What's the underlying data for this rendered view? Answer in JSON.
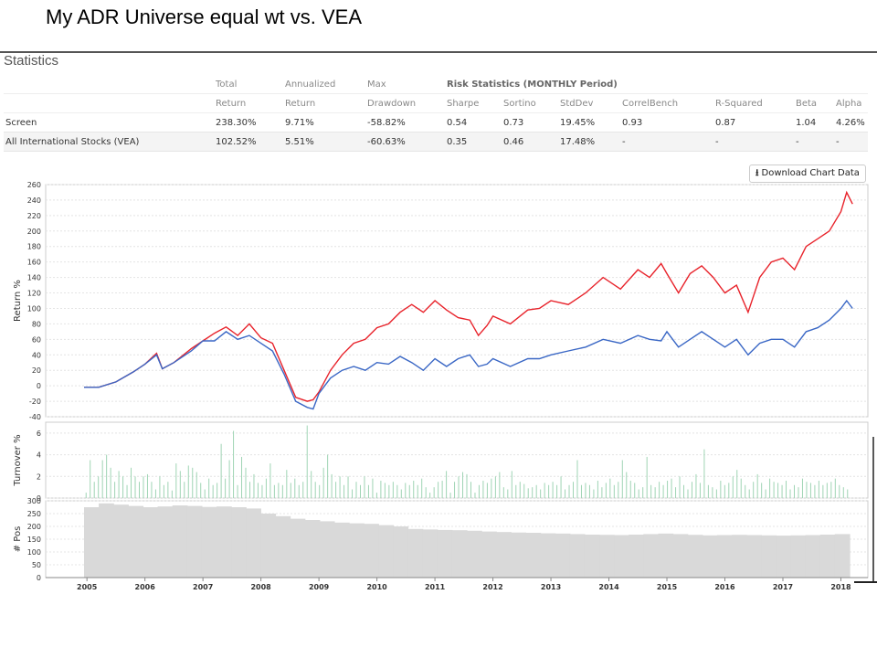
{
  "slide_title": "My ADR Universe equal wt vs. VEA",
  "panel_title": "Statistics",
  "download_label": "Download Chart Data",
  "icons": {
    "download": "download-icon"
  },
  "table": {
    "header1": [
      "",
      "Total",
      "Annualized",
      "Max",
      "Risk Statistics (MONTHLY Period)"
    ],
    "header2": [
      "",
      "Return",
      "Return",
      "Drawdown",
      "Sharpe",
      "Sortino",
      "StdDev",
      "CorrelBench",
      "R-Squared",
      "Beta",
      "Alpha"
    ],
    "rows": [
      {
        "name": "Screen",
        "total": "238.30%",
        "annualized": "9.71%",
        "max_dd": "-58.82%",
        "sharpe": "0.54",
        "sortino": "0.73",
        "stddev": "19.45%",
        "correl": "0.93",
        "rsq": "0.87",
        "beta": "1.04",
        "alpha": "4.26%"
      },
      {
        "name": "All International Stocks (VEA)",
        "total": "102.52%",
        "annualized": "5.51%",
        "max_dd": "-60.63%",
        "sharpe": "0.35",
        "sortino": "0.46",
        "stddev": "17.48%",
        "correl": "-",
        "rsq": "-",
        "beta": "-",
        "alpha": "-"
      }
    ]
  },
  "colors": {
    "screen": "#e8232b",
    "bench": "#3a67c5",
    "turnover": "#9fd4b4",
    "positions": "#d9d9d9",
    "negative": "#c0392b"
  },
  "chart_data": [
    {
      "type": "line",
      "ylabel": "Return %",
      "ylim": [
        -40,
        260
      ],
      "yticks": [
        -40,
        -20,
        0,
        20,
        40,
        60,
        80,
        100,
        120,
        140,
        160,
        180,
        200,
        220,
        240,
        260
      ],
      "x": [
        2004.95,
        2005.2,
        2005.5,
        2005.8,
        2006.0,
        2006.2,
        2006.3,
        2006.5,
        2006.8,
        2007.0,
        2007.2,
        2007.4,
        2007.6,
        2007.8,
        2008.0,
        2008.2,
        2008.4,
        2008.6,
        2008.8,
        2008.9,
        2009.0,
        2009.2,
        2009.4,
        2009.6,
        2009.8,
        2010.0,
        2010.2,
        2010.4,
        2010.6,
        2010.8,
        2011.0,
        2011.2,
        2011.4,
        2011.6,
        2011.75,
        2011.9,
        2012.0,
        2012.3,
        2012.6,
        2012.8,
        2013.0,
        2013.3,
        2013.6,
        2013.9,
        2014.2,
        2014.5,
        2014.7,
        2014.9,
        2015.0,
        2015.2,
        2015.4,
        2015.6,
        2015.8,
        2016.0,
        2016.2,
        2016.4,
        2016.6,
        2016.8,
        2017.0,
        2017.2,
        2017.4,
        2017.6,
        2017.8,
        2018.0,
        2018.1,
        2018.2
      ],
      "series": [
        {
          "name": "Screen",
          "values": [
            -2,
            -2,
            5,
            18,
            28,
            42,
            22,
            30,
            48,
            58,
            68,
            76,
            65,
            80,
            62,
            55,
            20,
            -15,
            -20,
            -18,
            -8,
            20,
            40,
            55,
            60,
            75,
            80,
            95,
            105,
            95,
            110,
            98,
            88,
            85,
            65,
            78,
            90,
            80,
            98,
            100,
            110,
            105,
            120,
            140,
            125,
            150,
            140,
            158,
            145,
            120,
            145,
            155,
            140,
            120,
            130,
            95,
            140,
            160,
            165,
            150,
            180,
            190,
            200,
            225,
            250,
            235
          ],
          "color": "#e8232b"
        },
        {
          "name": "All International Stocks (VEA)",
          "values": [
            -2,
            -2,
            5,
            18,
            28,
            40,
            22,
            30,
            45,
            58,
            58,
            70,
            60,
            65,
            55,
            45,
            15,
            -20,
            -28,
            -30,
            -10,
            10,
            20,
            25,
            20,
            30,
            28,
            38,
            30,
            20,
            35,
            25,
            35,
            40,
            25,
            28,
            35,
            25,
            35,
            35,
            40,
            45,
            50,
            60,
            55,
            65,
            60,
            58,
            70,
            50,
            60,
            70,
            60,
            50,
            60,
            40,
            55,
            60,
            60,
            50,
            70,
            75,
            85,
            100,
            110,
            100
          ],
          "color": "#3a67c5"
        }
      ]
    },
    {
      "type": "bar",
      "ylabel": "Turnover %",
      "ylim": [
        0,
        7
      ],
      "yticks": [
        0,
        2,
        4,
        6
      ],
      "values": [
        0.5,
        3.5,
        1.5,
        2,
        3.5,
        4,
        2.8,
        1.5,
        2.5,
        2,
        1.2,
        2.8,
        2,
        1.5,
        2,
        2.2,
        1.5,
        0.8,
        2,
        1.2,
        1.5,
        0.7,
        3.2,
        2.5,
        1.5,
        3,
        2.8,
        2.4,
        1.4,
        0.8,
        1.8,
        1.2,
        1.4,
        5,
        1.8,
        3.5,
        6.2,
        1.2,
        3.8,
        2.8,
        1.5,
        2.2,
        1.4,
        1.2,
        1.8,
        3.2,
        1.2,
        1.4,
        1.2,
        2.6,
        1.4,
        1.8,
        1.2,
        1.5,
        6.7,
        2.5,
        1.5,
        1.2,
        2.8,
        4,
        2.2,
        1.5,
        2,
        1.2,
        2,
        0.8,
        1.5,
        1.2,
        2,
        1.2,
        1.8,
        0.5,
        1.6,
        1.4,
        1.2,
        1.5,
        1.2,
        0.8,
        1.4,
        1.2,
        1.6,
        1.2,
        1.8,
        1,
        0.5,
        1,
        1.5,
        1.6,
        2.5,
        0.5,
        1.5,
        2,
        2.4,
        2.2,
        1.5,
        0.5,
        1.2,
        1.6,
        1.4,
        1.8,
        2,
        2.4,
        1,
        0.8,
        2.5,
        1.2,
        1.5,
        1.3,
        0.9,
        1,
        1.2,
        0.8,
        1.4,
        1.2,
        1.5,
        1.2,
        2,
        0.8,
        1.2,
        1.5,
        3.5,
        1.2,
        1.4,
        1.2,
        0.8,
        1.6,
        1,
        1.4,
        1.8,
        1.2,
        1.5,
        3.5,
        2.4,
        1.6,
        1.4,
        0.8,
        1,
        3.8,
        1.2,
        1,
        1.5,
        1.2,
        1.6,
        1.8,
        1,
        2,
        1.2,
        0.8,
        1.5,
        2.2,
        1.4,
        4.5,
        1.2,
        1,
        0.8,
        1.6,
        1.2,
        1.4,
        2,
        2.6,
        1.8,
        1.2,
        0.8,
        1.5,
        2.2,
        1.4,
        0.8,
        1.8,
        1.5,
        1.4,
        1.2,
        1.6,
        0.8,
        1.2,
        1,
        1.8,
        1.5,
        1.4,
        1.2,
        1.6,
        1.2,
        1.4,
        1.5,
        1.8,
        1.2,
        1,
        0.8
      ]
    },
    {
      "type": "bar",
      "ylabel": "# Pos",
      "ylim": [
        0,
        300
      ],
      "yticks": [
        0,
        50,
        100,
        150,
        200,
        250,
        300
      ],
      "values": [
        275,
        290,
        285,
        280,
        275,
        278,
        282,
        280,
        276,
        278,
        275,
        270,
        250,
        240,
        230,
        225,
        220,
        215,
        212,
        210,
        205,
        200,
        190,
        188,
        186,
        185,
        183,
        180,
        178,
        176,
        175,
        173,
        172,
        170,
        168,
        167,
        166,
        168,
        170,
        172,
        170,
        167,
        165,
        166,
        167,
        166,
        165,
        164,
        165,
        166,
        168,
        170
      ]
    }
  ],
  "x_axis": {
    "ticks": [
      "2005",
      "2006",
      "2007",
      "2008",
      "2009",
      "2010",
      "2011",
      "2012",
      "2013",
      "2014",
      "2015",
      "2016",
      "2017",
      "2018"
    ]
  }
}
